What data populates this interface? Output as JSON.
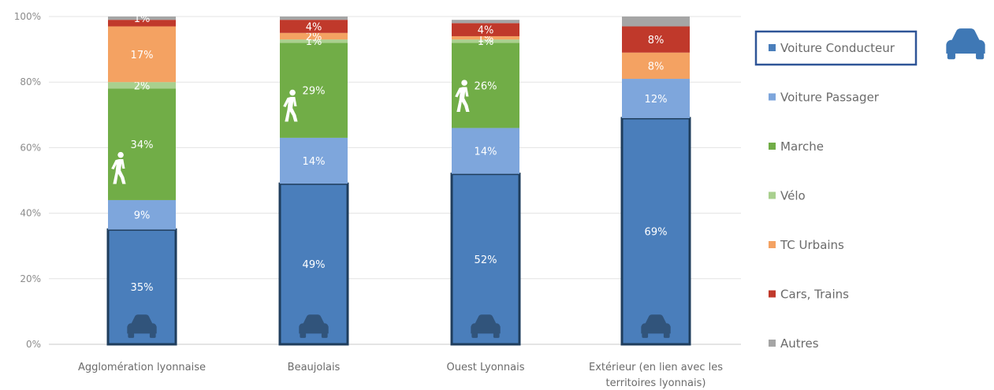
{
  "chart_data": {
    "type": "bar",
    "stacked": true,
    "title": "",
    "xlabel": "",
    "ylabel": "",
    "ylim": [
      0,
      100
    ],
    "y_ticks": [
      "0%",
      "20%",
      "40%",
      "60%",
      "80%",
      "100%"
    ],
    "grid": true,
    "legend_position": "right",
    "highlighted_series": "Voiture Conducteur",
    "categories": [
      [
        "Agglomération lyonnaise"
      ],
      [
        "Beaujolais"
      ],
      [
        "Ouest Lyonnais"
      ],
      [
        "Extérieur (en lien avec les",
        "territoires lyonnais)"
      ]
    ],
    "series": [
      {
        "name": "Voiture Conducteur",
        "color": "#4a7ebb",
        "values": [
          35,
          49,
          52,
          69
        ],
        "labels": [
          "35%",
          "49%",
          "52%",
          "69%"
        ]
      },
      {
        "name": "Voiture Passager",
        "color": "#7ea6dc",
        "values": [
          9,
          14,
          14,
          12
        ],
        "labels": [
          "9%",
          "14%",
          "14%",
          "12%"
        ]
      },
      {
        "name": "Marche",
        "color": "#71ad47",
        "values": [
          34,
          29,
          26,
          0
        ],
        "labels": [
          "34%",
          "29%",
          "26%",
          ""
        ]
      },
      {
        "name": "Vélo",
        "color": "#a9d08e",
        "values": [
          2,
          1,
          1,
          0
        ],
        "labels": [
          "2%",
          "1%",
          "1%",
          ""
        ]
      },
      {
        "name": "TC Urbains",
        "color": "#f4a262",
        "values": [
          17,
          2,
          1,
          8
        ],
        "labels": [
          "17%",
          "2%",
          "1%",
          "8%"
        ]
      },
      {
        "name": "Cars, Trains",
        "color": "#c0392b",
        "values": [
          2,
          4,
          4,
          8
        ],
        "labels": [
          "",
          "4%",
          "4%",
          "8%"
        ]
      },
      {
        "name": "Autres",
        "color": "#a5a5a5",
        "values": [
          1,
          1,
          1,
          3
        ],
        "labels": [
          "1%",
          "",
          "",
          ""
        ]
      }
    ],
    "icons": {
      "conductor_icon": "car-icon",
      "walking_icon": "pedestrian-icon"
    }
  }
}
